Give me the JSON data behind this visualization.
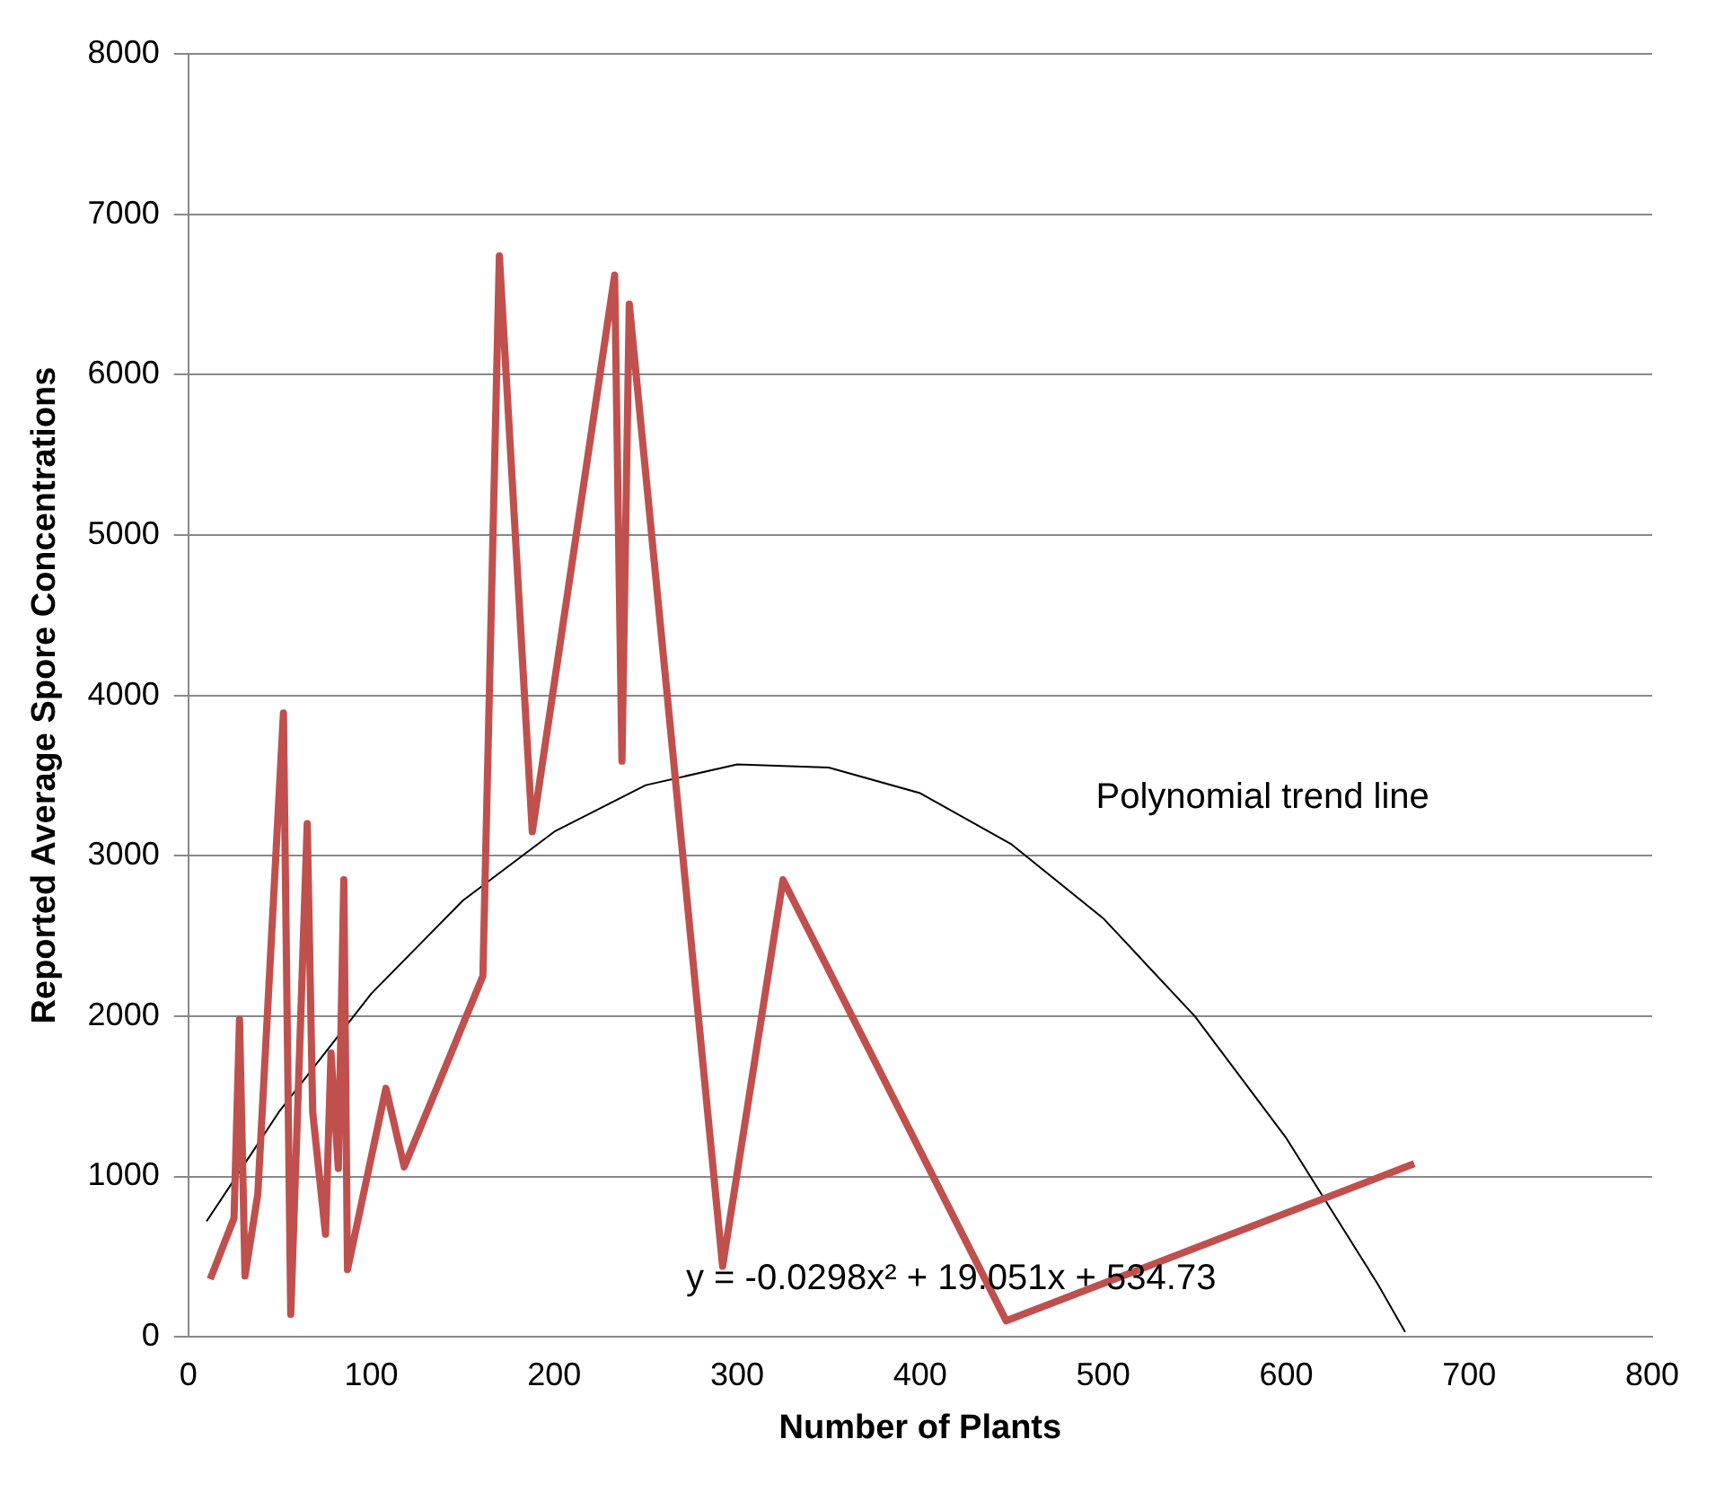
{
  "chart_data": {
    "type": "line",
    "xlabel": "Number of Plants",
    "ylabel": "Reported Average Spore Concentrations",
    "xlim": [
      0,
      800
    ],
    "xticks": [
      0,
      100,
      200,
      300,
      400,
      500,
      600,
      700,
      800
    ],
    "ylim": [
      0,
      8000
    ],
    "yticks": [
      0,
      1000,
      2000,
      3000,
      4000,
      5000,
      6000,
      7000,
      8000
    ],
    "grid": "y",
    "legend": false,
    "marker": "none",
    "series": [
      {
        "color": "#c0504d",
        "x": [
          12,
          25,
          28,
          31,
          38,
          52,
          56,
          65,
          68,
          75,
          78,
          82,
          85,
          87,
          108,
          118,
          161,
          170,
          188,
          233,
          237,
          241,
          292,
          325,
          447,
          670
        ],
        "values": [
          360,
          740,
          1980,
          380,
          890,
          3890,
          140,
          3200,
          1400,
          640,
          1770,
          1050,
          2850,
          420,
          1550,
          1060,
          2250,
          6740,
          3150,
          6620,
          3590,
          6440,
          440,
          2850,
          100,
          1080
        ]
      },
      {
        "type": "line",
        "color": "#000000",
        "x": [
          10,
          50,
          100,
          150,
          200,
          250,
          300,
          350,
          400,
          450,
          500,
          550,
          600,
          650,
          665
        ],
        "values": [
          720,
          1410,
          2140,
          2720,
          3150,
          3440,
          3570,
          3550,
          3390,
          3070,
          2610,
          2000,
          1240,
          330,
          30
        ]
      }
    ],
    "annotations": [
      "Polynomial trend line",
      "y = -0.0298x² + 19.051x + 534.73"
    ]
  }
}
